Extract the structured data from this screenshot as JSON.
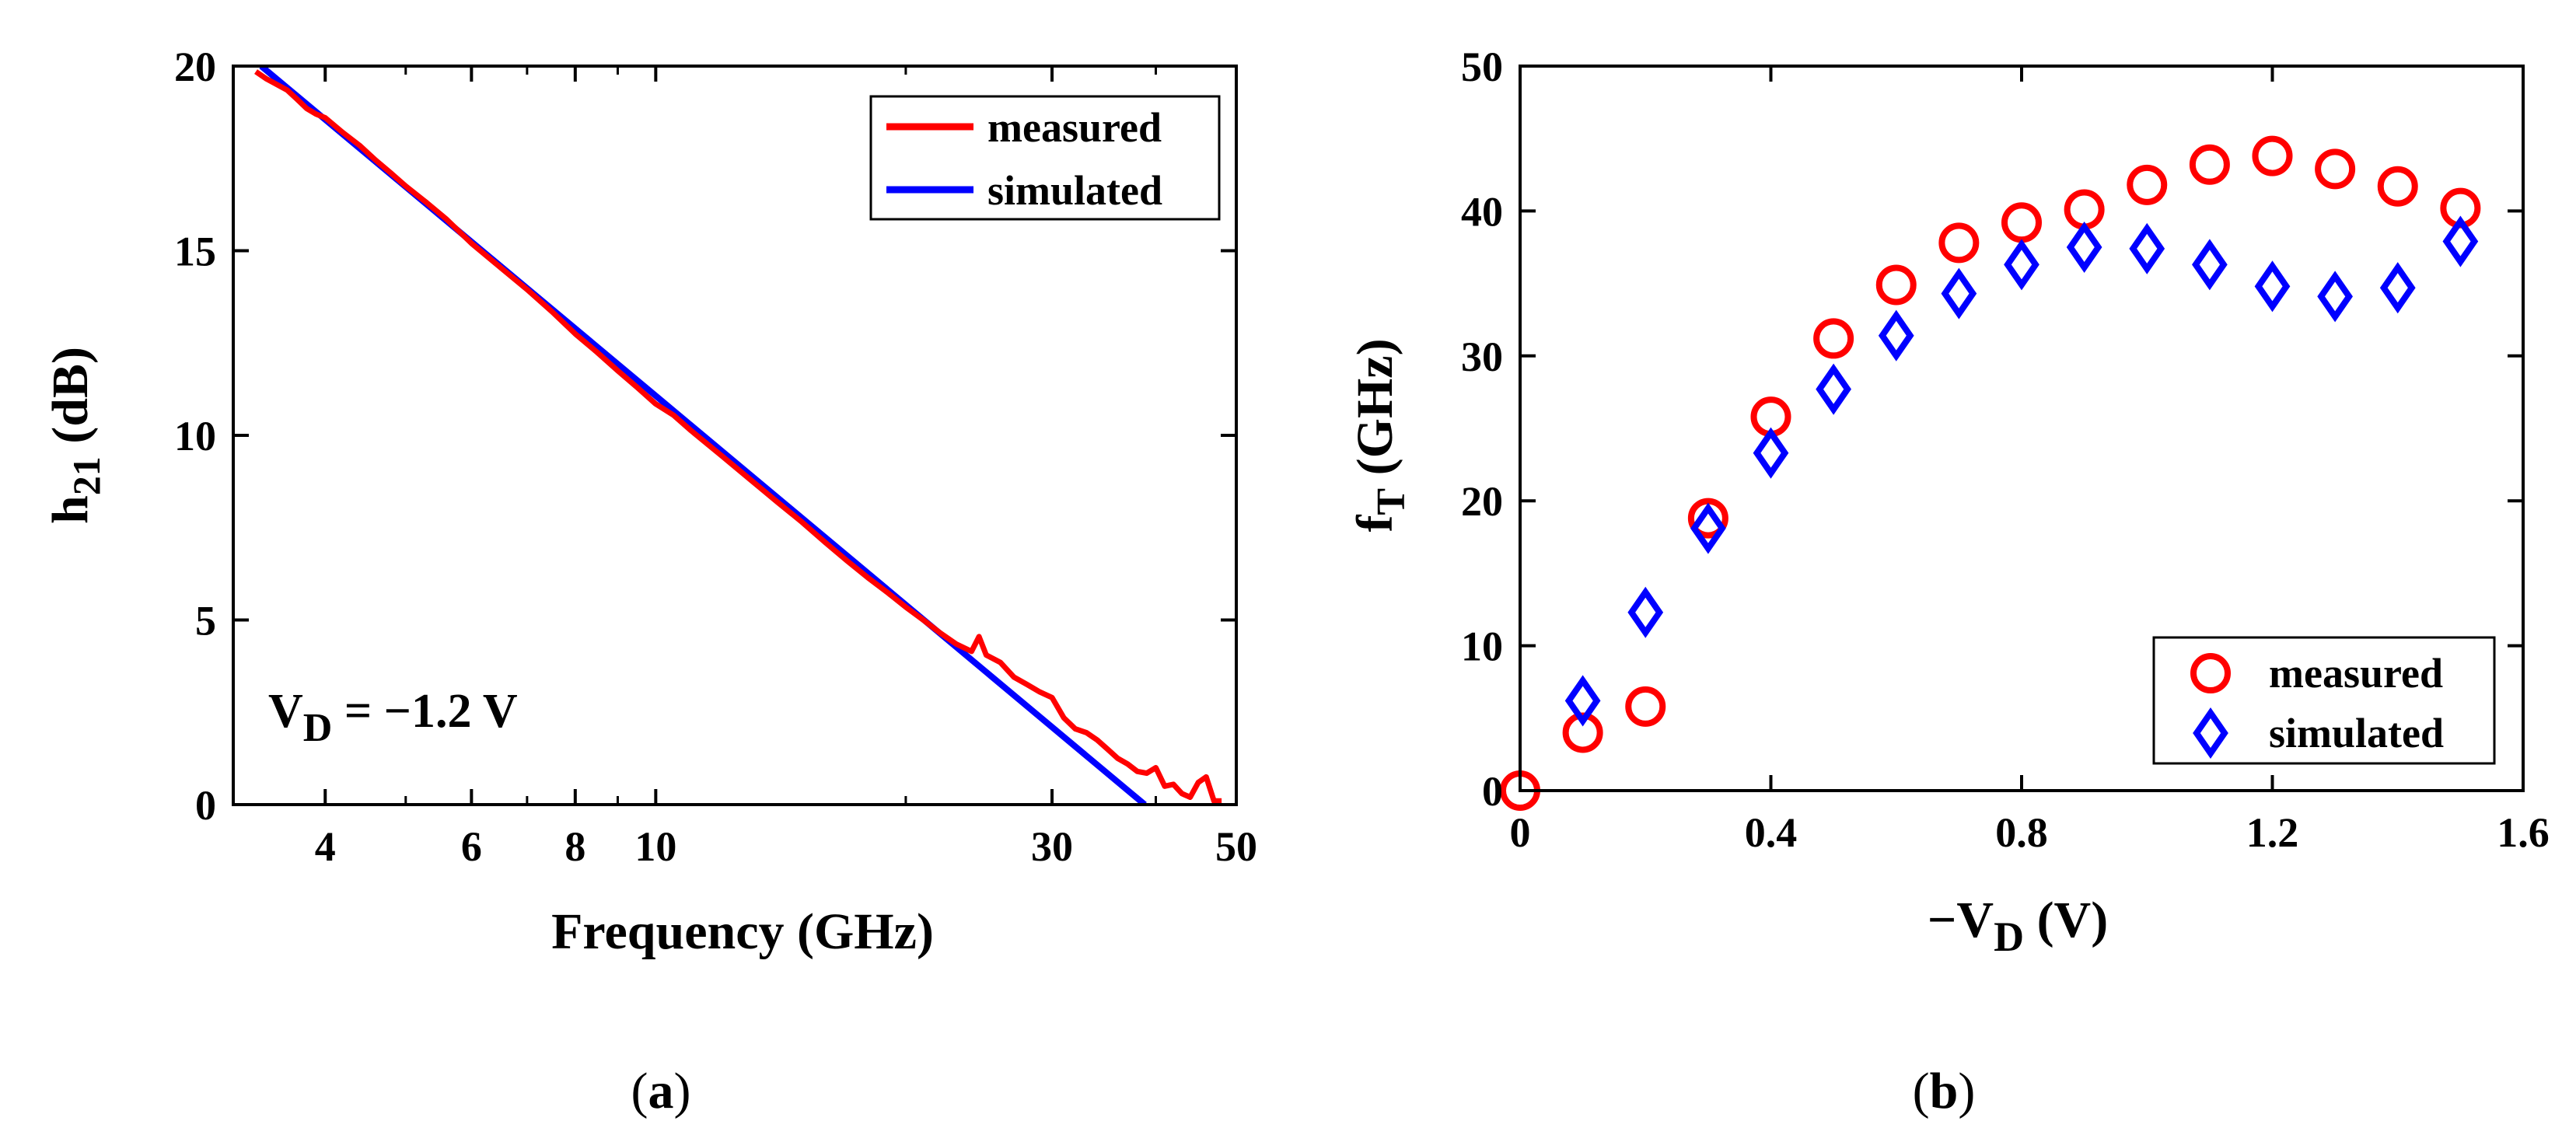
{
  "chart_data": [
    {
      "type": "line",
      "panel_label": "a",
      "title": "",
      "xlabel": "Frequency (GHz)",
      "ylabel": "h21 (dB)",
      "ylabel_main": "h",
      "ylabel_sub": "21",
      "ylabel_unit": " (dB)",
      "xscale": "log",
      "xlim": [
        3.1,
        50
      ],
      "ylim": [
        0,
        20
      ],
      "xticks": [
        4,
        6,
        8,
        10,
        30,
        50
      ],
      "xtick_labels": [
        "4",
        "6",
        "8",
        "10",
        "30",
        "50"
      ],
      "yticks": [
        0,
        5,
        10,
        15,
        20
      ],
      "ytick_labels": [
        "0",
        "5",
        "10",
        "15",
        "20"
      ],
      "annotation": {
        "main": "V",
        "sub": "D",
        "rest": " = −1.2 V"
      },
      "legend_position": "top-right",
      "series": [
        {
          "name": "measured",
          "color": "#ff0000",
          "x": [
            3.3,
            3.4,
            3.5,
            3.6,
            3.7,
            3.8,
            3.9,
            4.0,
            4.2,
            4.4,
            4.6,
            4.8,
            5.0,
            5.3,
            5.6,
            6.0,
            6.5,
            7.0,
            7.5,
            8.0,
            8.5,
            9.0,
            9.5,
            10.0,
            10.5,
            11,
            12,
            13,
            14,
            15,
            16,
            17,
            18,
            19,
            20,
            21,
            22,
            23,
            24,
            24.5,
            25,
            26,
            27,
            28,
            29,
            30,
            31,
            32,
            33,
            34,
            35,
            36,
            37,
            38,
            39,
            40,
            41,
            42,
            43,
            44,
            45,
            46,
            47,
            48
          ],
          "y": [
            19.85,
            19.65,
            19.5,
            19.35,
            19.1,
            18.85,
            18.7,
            18.6,
            18.2,
            17.85,
            17.45,
            17.1,
            16.75,
            16.3,
            15.85,
            15.2,
            14.55,
            13.95,
            13.35,
            12.75,
            12.25,
            11.75,
            11.3,
            10.85,
            10.55,
            10.15,
            9.45,
            8.8,
            8.2,
            7.65,
            7.1,
            6.6,
            6.15,
            5.75,
            5.35,
            5.0,
            4.65,
            4.35,
            4.15,
            4.55,
            4.05,
            3.85,
            3.45,
            3.25,
            3.05,
            2.9,
            2.35,
            2.05,
            1.95,
            1.75,
            1.5,
            1.25,
            1.1,
            0.9,
            0.85,
            1.0,
            0.5,
            0.55,
            0.3,
            0.2,
            0.6,
            0.75,
            0.1,
            0.1
          ]
        },
        {
          "name": "simulated",
          "color": "#0000ff",
          "x": [
            3.35,
            38.8
          ],
          "y": [
            20.0,
            0.0
          ]
        }
      ]
    },
    {
      "type": "scatter",
      "panel_label": "b",
      "title": "",
      "xlabel": "−VD (V)",
      "xlabel_main": "−V",
      "xlabel_sub": "D",
      "xlabel_unit": " (V)",
      "ylabel": "fT (GHz)",
      "ylabel_main": "f",
      "ylabel_sub": "T",
      "ylabel_unit": " (GHz)",
      "xlim": [
        0,
        1.6
      ],
      "ylim": [
        0,
        50
      ],
      "xticks": [
        0,
        0.4,
        0.8,
        1.2,
        1.6
      ],
      "xtick_labels": [
        "0",
        "0.4",
        "0.8",
        "1.2",
        "1.6"
      ],
      "yticks": [
        0,
        10,
        20,
        30,
        40,
        50
      ],
      "ytick_labels": [
        "0",
        "10",
        "20",
        "30",
        "40",
        "50"
      ],
      "legend_position": "bottom-right",
      "series": [
        {
          "name": "measured",
          "marker": "circle",
          "color": "#ff0000",
          "x": [
            0,
            0.1,
            0.2,
            0.3,
            0.4,
            0.5,
            0.6,
            0.7,
            0.8,
            0.9,
            1.0,
            1.1,
            1.2,
            1.3,
            1.4,
            1.5
          ],
          "y": [
            0,
            4,
            5.8,
            18.8,
            25.8,
            31.2,
            34.9,
            37.8,
            39.2,
            40.1,
            41.8,
            43.2,
            43.8,
            42.9,
            41.7,
            40.2
          ]
        },
        {
          "name": "simulated",
          "marker": "diamond",
          "color": "#0000ff",
          "x": [
            0.1,
            0.2,
            0.3,
            0.4,
            0.5,
            0.6,
            0.7,
            0.8,
            0.9,
            1.0,
            1.1,
            1.2,
            1.3,
            1.4,
            1.5
          ],
          "y": [
            6.2,
            12.3,
            18.1,
            23.3,
            27.7,
            31.4,
            34.3,
            36.3,
            37.5,
            37.4,
            36.3,
            34.8,
            34.1,
            34.7,
            37.9
          ]
        }
      ]
    }
  ]
}
